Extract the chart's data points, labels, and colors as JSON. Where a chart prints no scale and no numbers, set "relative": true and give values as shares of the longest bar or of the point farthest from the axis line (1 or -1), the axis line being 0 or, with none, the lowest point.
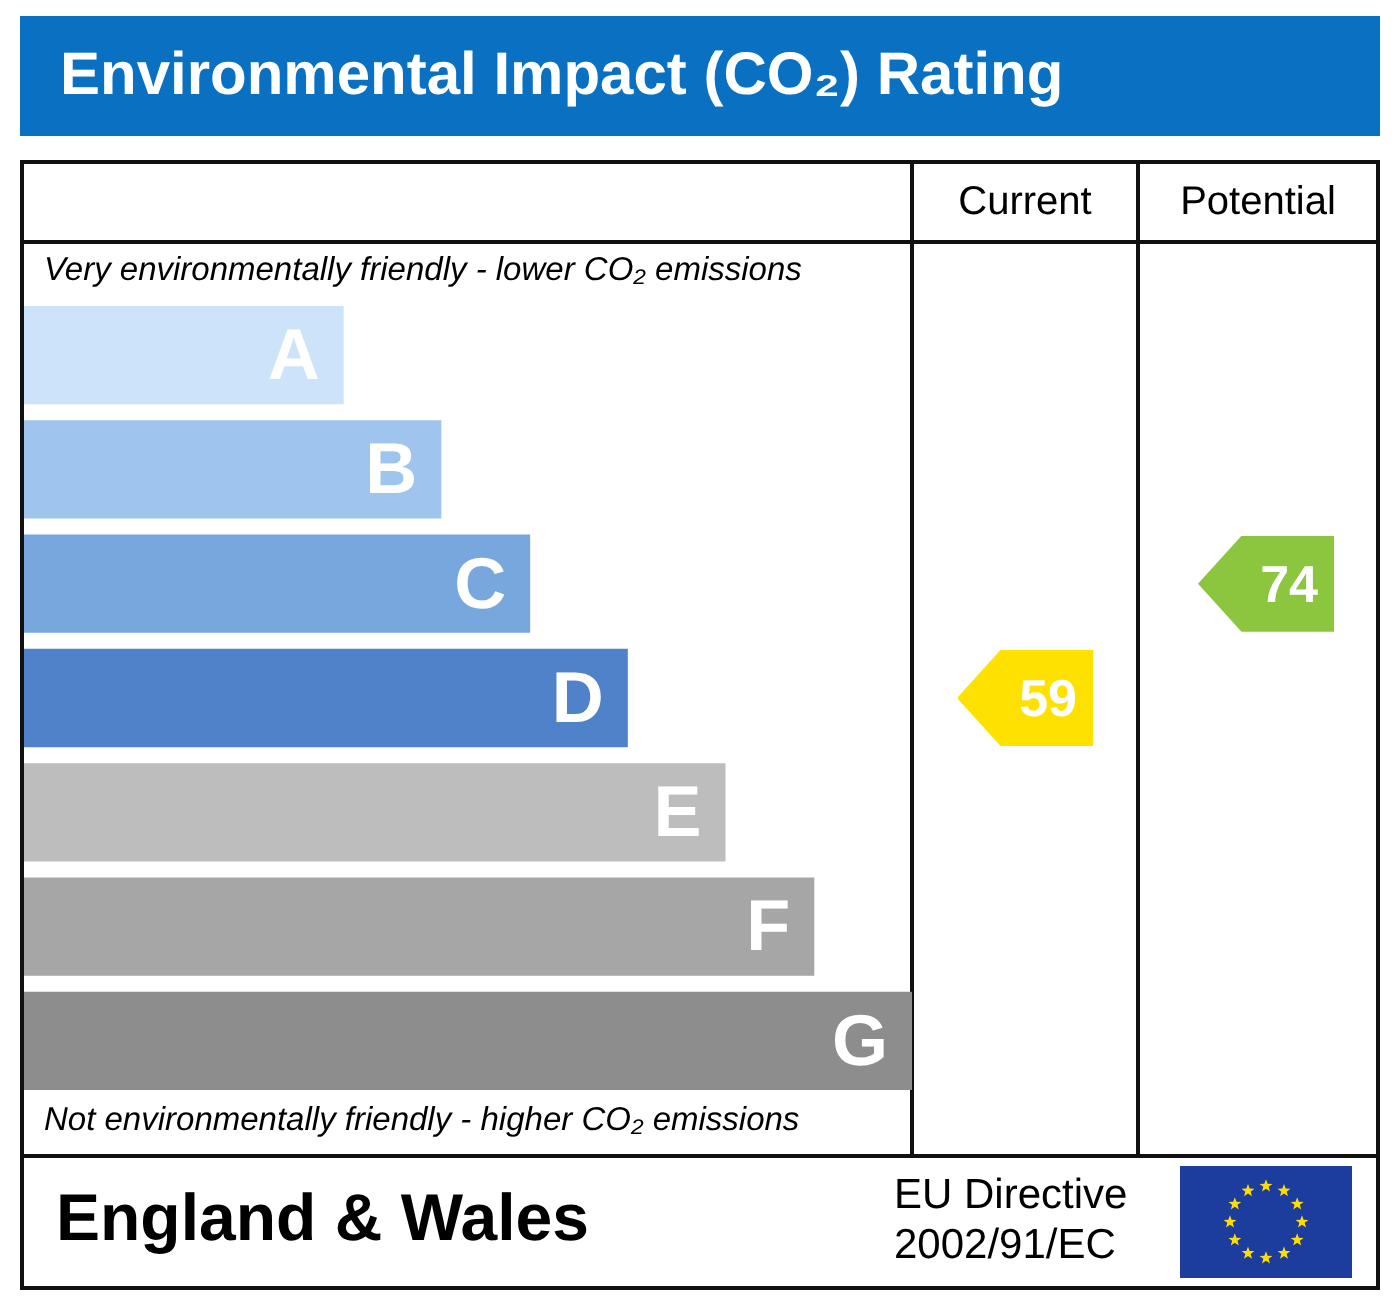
{
  "chart_data": {
    "type": "bar",
    "orientation": "horizontal",
    "relative": true,
    "title": "Environmental Impact (CO₂) Rating",
    "categories": [
      "A",
      "B",
      "C",
      "D",
      "E",
      "F",
      "G"
    ],
    "values": [
      0.36,
      0.47,
      0.57,
      0.68,
      0.79,
      0.89,
      1
    ],
    "colors": [
      "#cde3f9",
      "#9fc5ef",
      "#77a7dd",
      "#4f82c8",
      "#bdbdbd",
      "#a6a6a6",
      "#8d8d8d"
    ],
    "annotations": [
      "Very environmentally friendly - lower CO₂ emissions",
      "Not environmentally friendly - higher CO₂ emissions",
      "England & Wales",
      "EU Directive 2002/91/EC",
      "Current",
      "Potential",
      "59",
      "74"
    ]
  }
}
